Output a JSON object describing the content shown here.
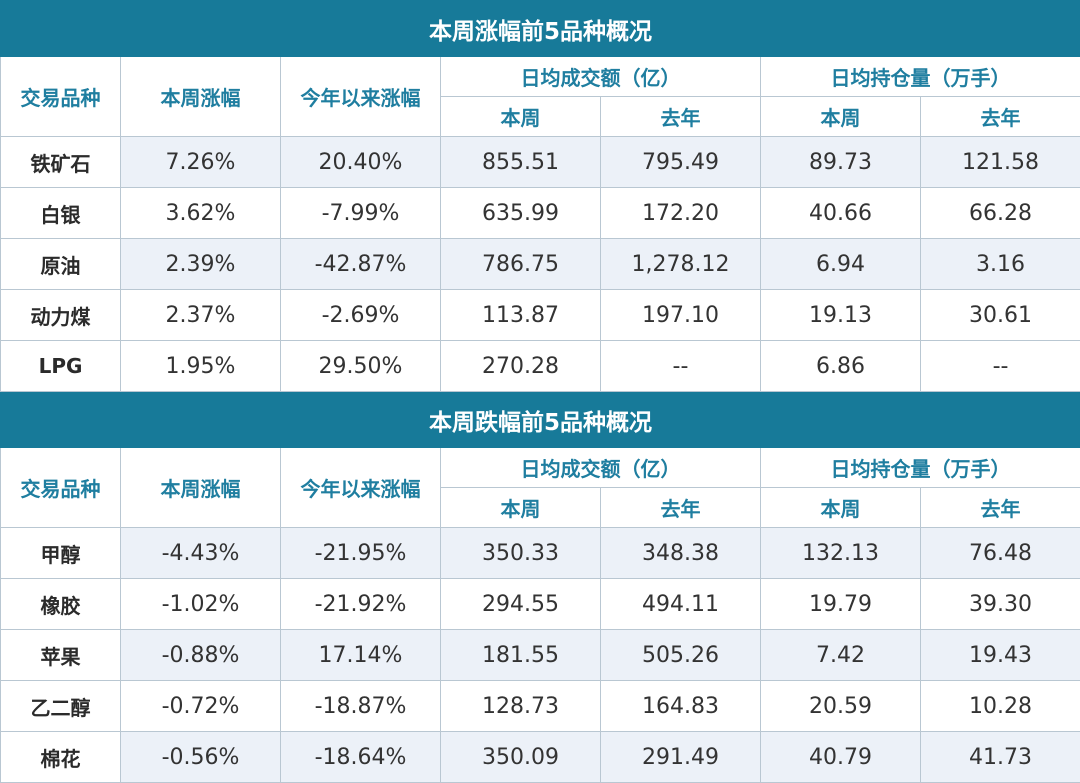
{
  "sections": [
    {
      "title": "本周涨幅前5品种概况",
      "headers": {
        "col_product": "交易品种",
        "col_week_change": "本周涨幅",
        "col_ytd_change": "今年以来涨幅",
        "col_volume": "日均成交额（亿）",
        "col_oi": "日均持仓量（万手）",
        "sub_this_week": "本周",
        "sub_last_year": "去年"
      },
      "rows": [
        {
          "name": "铁矿石",
          "week": "7.26%",
          "ytd": "20.40%",
          "vol_week": "855.51",
          "vol_last": "795.49",
          "oi_week": "89.73",
          "oi_last": "121.58"
        },
        {
          "name": "白银",
          "week": "3.62%",
          "ytd": "-7.99%",
          "vol_week": "635.99",
          "vol_last": "172.20",
          "oi_week": "40.66",
          "oi_last": "66.28"
        },
        {
          "name": "原油",
          "week": "2.39%",
          "ytd": "-42.87%",
          "vol_week": "786.75",
          "vol_last": "1,278.12",
          "oi_week": "6.94",
          "oi_last": "3.16"
        },
        {
          "name": "动力煤",
          "week": "2.37%",
          "ytd": "-2.69%",
          "vol_week": "113.87",
          "vol_last": "197.10",
          "oi_week": "19.13",
          "oi_last": "30.61"
        },
        {
          "name": "LPG",
          "week": "1.95%",
          "ytd": "29.50%",
          "vol_week": "270.28",
          "vol_last": "--",
          "oi_week": "6.86",
          "oi_last": "--"
        }
      ]
    },
    {
      "title": "本周跌幅前5品种概况",
      "headers": {
        "col_product": "交易品种",
        "col_week_change": "本周涨幅",
        "col_ytd_change": "今年以来涨幅",
        "col_volume": "日均成交额（亿）",
        "col_oi": "日均持仓量（万手）",
        "sub_this_week": "本周",
        "sub_last_year": "去年"
      },
      "rows": [
        {
          "name": "甲醇",
          "week": "-4.43%",
          "ytd": "-21.95%",
          "vol_week": "350.33",
          "vol_last": "348.38",
          "oi_week": "132.13",
          "oi_last": "76.48"
        },
        {
          "name": "橡胶",
          "week": "-1.02%",
          "ytd": "-21.92%",
          "vol_week": "294.55",
          "vol_last": "494.11",
          "oi_week": "19.79",
          "oi_last": "39.30"
        },
        {
          "name": "苹果",
          "week": "-0.88%",
          "ytd": "17.14%",
          "vol_week": "181.55",
          "vol_last": "505.26",
          "oi_week": "7.42",
          "oi_last": "19.43"
        },
        {
          "name": "乙二醇",
          "week": "-0.72%",
          "ytd": "-18.87%",
          "vol_week": "128.73",
          "vol_last": "164.83",
          "oi_week": "20.59",
          "oi_last": "10.28"
        },
        {
          "name": "棉花",
          "week": "-0.56%",
          "ytd": "-18.64%",
          "vol_week": "350.09",
          "vol_last": "291.49",
          "oi_week": "40.79",
          "oi_last": "41.73"
        }
      ]
    }
  ],
  "colors": {
    "title_bg": "#177a99",
    "header_text": "#1f7ea0",
    "alt_row_bg": "#ecf1f8",
    "border": "#b9c7d2"
  }
}
